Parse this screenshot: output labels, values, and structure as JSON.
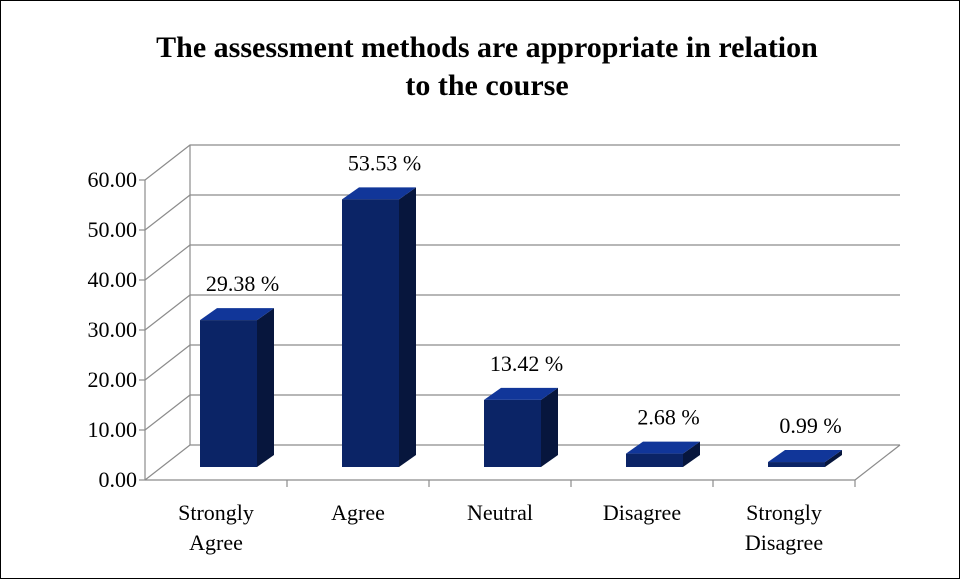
{
  "chart_data": {
    "type": "bar3d",
    "title": [
      "The assessment methods are appropriate in relation",
      "to the course"
    ],
    "categories": [
      "Strongly Agree",
      "Agree",
      "Neutral",
      "Disagree",
      "Strongly Disagree"
    ],
    "values": [
      29.38,
      53.53,
      13.42,
      2.68,
      0.99
    ],
    "value_labels": [
      "29.38 %",
      "53.53 %",
      "13.42 %",
      "2.68 %",
      "0.99 %"
    ],
    "color": "#0b2466",
    "ylim": [
      0,
      60
    ],
    "yticks": [
      {
        "value": 0,
        "label": "0.00"
      },
      {
        "value": 10,
        "label": "10.00"
      },
      {
        "value": 20,
        "label": "20.00"
      },
      {
        "value": 30,
        "label": "30.00"
      },
      {
        "value": 40,
        "label": "40.00"
      },
      {
        "value": 50,
        "label": "50.00"
      },
      {
        "value": 60,
        "label": "60.00"
      }
    ],
    "grid": true
  }
}
